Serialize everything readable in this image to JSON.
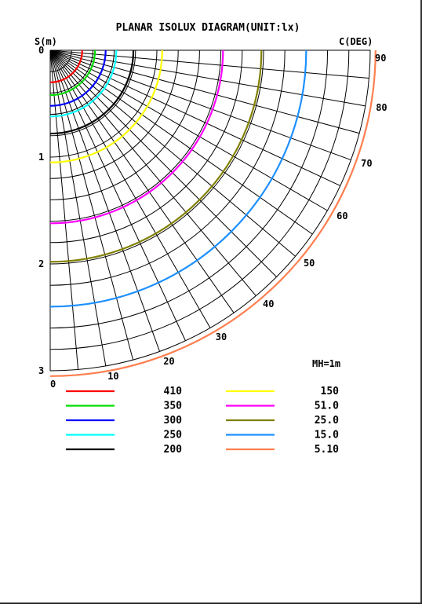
{
  "chart_data": {
    "type": "polar-isolux",
    "title": "PLANAR ISOLUX DIAGRAM(UNIT:lx)",
    "radial_axis": {
      "label": "S(m)",
      "ticks": [
        "0",
        "1",
        "2",
        "3"
      ],
      "range": [
        0,
        3
      ],
      "grid_step": 0.2
    },
    "angle_axis": {
      "label": "C(DEG)",
      "ticks": [
        "0",
        "10",
        "20",
        "30",
        "40",
        "50",
        "60",
        "70",
        "80",
        "90"
      ],
      "range": [
        0,
        90
      ],
      "grid_step": 5
    },
    "annotation": "MH=1m",
    "series": [
      {
        "name": "410",
        "color": "#ff0000",
        "radius": 0.3
      },
      {
        "name": "350",
        "color": "#00dd00",
        "radius": 0.42
      },
      {
        "name": "300",
        "color": "#0000ff",
        "radius": 0.52
      },
      {
        "name": "250",
        "color": "#00ffff",
        "radius": 0.62
      },
      {
        "name": "200",
        "color": "#000000",
        "radius": 0.78
      },
      {
        "name": "150",
        "color": "#ffff00",
        "radius": 1.05
      },
      {
        "name": "51.0",
        "color": "#ff00ff",
        "radius": 1.62
      },
      {
        "name": "25.0",
        "color": "#808000",
        "radius": 1.98
      },
      {
        "name": "15.0",
        "color": "#1e90ff",
        "radius": 2.4
      },
      {
        "name": "5.10",
        "color": "#ff7f50",
        "radius": 3.05
      }
    ]
  }
}
